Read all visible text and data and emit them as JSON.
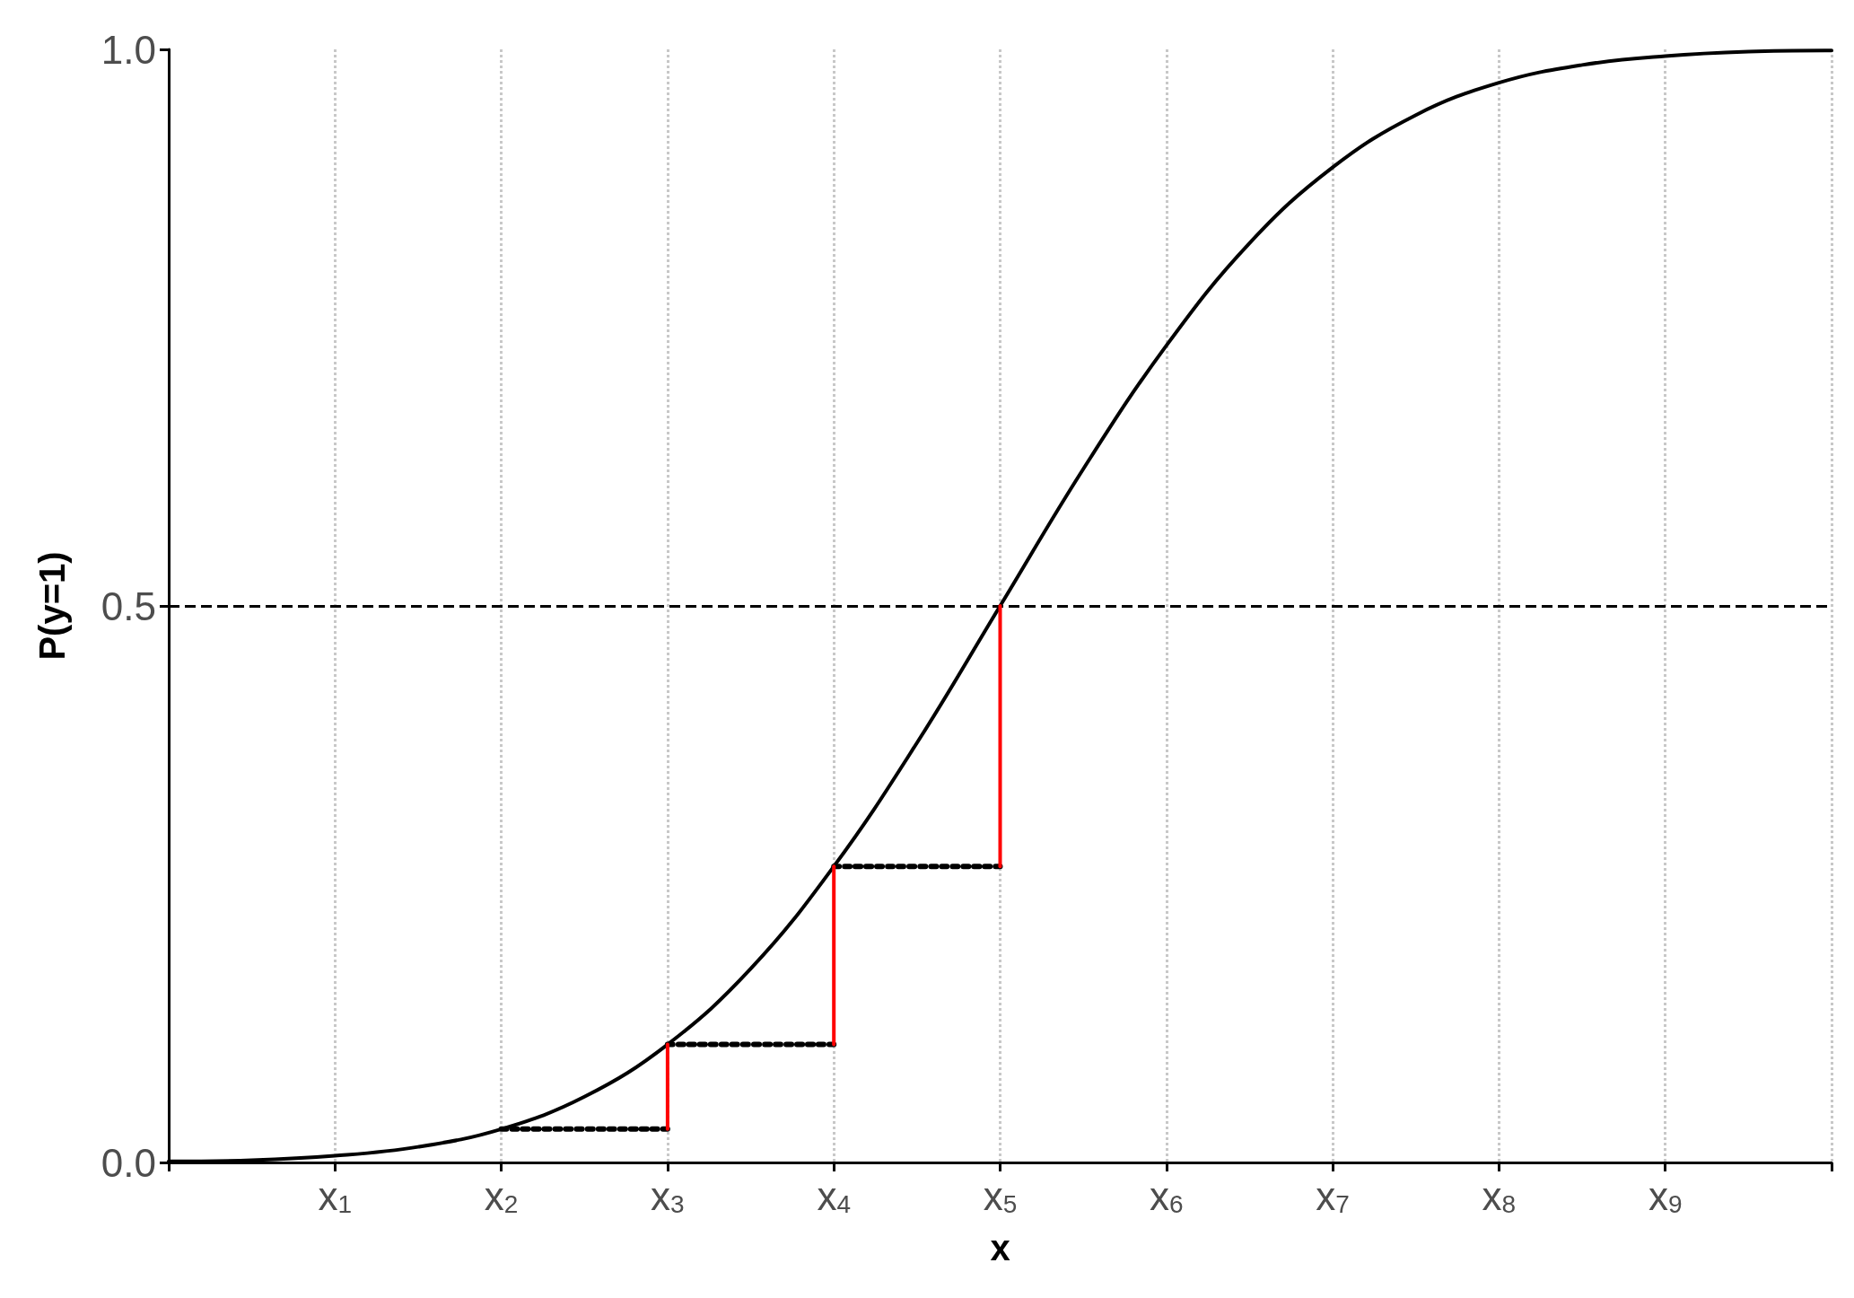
{
  "chart_data": {
    "type": "line",
    "xlabel": "x",
    "ylabel": "P(y=1)",
    "xlim": [
      0,
      10
    ],
    "ylim": [
      0,
      1
    ],
    "xticks": [
      {
        "value": 0,
        "label": null
      },
      {
        "value": 1,
        "label": "x$_{1}$"
      },
      {
        "value": 2,
        "label": "x$_{2}$"
      },
      {
        "value": 3,
        "label": "x$_{3}$"
      },
      {
        "value": 4,
        "label": "x$_{4}$"
      },
      {
        "value": 5,
        "label": "x$_{5}$"
      },
      {
        "value": 6,
        "label": "x$_{6}$"
      },
      {
        "value": 7,
        "label": "x$_{7}$"
      },
      {
        "value": 8,
        "label": "x$_{8}$"
      },
      {
        "value": 9,
        "label": "x$_{9}$"
      },
      {
        "value": 10,
        "label": null
      }
    ],
    "yticks": [
      {
        "value": 0,
        "label": "0.0"
      },
      {
        "value": 0.5,
        "label": "0.5"
      },
      {
        "value": 1,
        "label": "1.0"
      }
    ],
    "grid": "x",
    "marker": "none",
    "series": [
      {
        "color": "#000000",
        "line_style": "solid",
        "x": [
          0,
          0.5,
          1,
          1.5,
          2,
          2.5,
          3,
          3.5,
          4,
          4.5,
          5,
          5.5,
          6,
          6.5,
          7,
          7.5,
          8,
          8.5,
          9,
          9.5,
          10
        ],
        "values": [
          0.001,
          0.002,
          0.006,
          0.014,
          0.03,
          0.059,
          0.106,
          0.174,
          0.266,
          0.377,
          0.5,
          0.623,
          0.734,
          0.826,
          0.894,
          0.941,
          0.97,
          0.986,
          0.994,
          0.998,
          0.999
        ]
      },
      {
        "color": "#000000",
        "line_style": "dotted",
        "x": [
          2,
          3
        ],
        "values": [
          0.03,
          0.03
        ]
      },
      {
        "color": "#000000",
        "line_style": "dotted",
        "x": [
          3,
          4
        ],
        "values": [
          0.106,
          0.106
        ]
      },
      {
        "color": "#000000",
        "line_style": "dotted",
        "x": [
          4,
          5
        ],
        "values": [
          0.266,
          0.266
        ]
      },
      {
        "color": "#ff0000",
        "line_style": "solid",
        "x": [
          3,
          3
        ],
        "values": [
          0.03,
          0.106
        ]
      },
      {
        "color": "#ff0000",
        "line_style": "solid",
        "x": [
          4,
          4
        ],
        "values": [
          0.106,
          0.266
        ]
      },
      {
        "color": "#ff0000",
        "line_style": "solid",
        "x": [
          5,
          5
        ],
        "values": [
          0.266,
          0.5
        ]
      }
    ],
    "ref_lines": [
      {
        "axis": "y",
        "value": 0.5,
        "label": null,
        "color": "#000000",
        "line_style": "dashed"
      }
    ]
  }
}
